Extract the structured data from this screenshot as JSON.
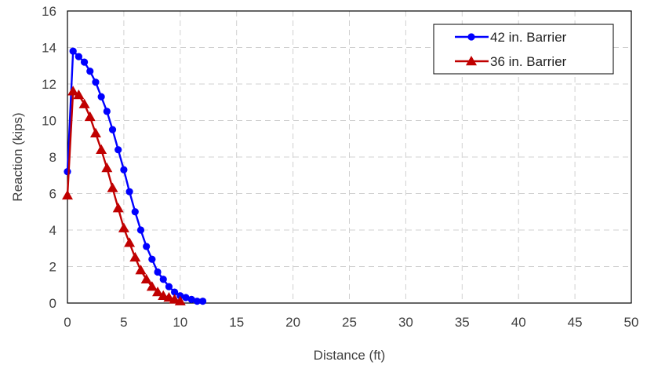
{
  "chart_data": {
    "type": "line",
    "xlabel": "Distance (ft)",
    "ylabel": "Reaction (kips)",
    "xlim": [
      0,
      50
    ],
    "ylim": [
      0,
      16
    ],
    "x_ticks": [
      0,
      5,
      10,
      15,
      20,
      25,
      30,
      35,
      40,
      45,
      50
    ],
    "y_ticks": [
      0,
      2,
      4,
      6,
      8,
      10,
      12,
      14,
      16
    ],
    "grid": true,
    "legend_position": "top-right",
    "series": [
      {
        "name": "42 in. Barrier",
        "color": "#0000ff",
        "marker": "circle",
        "points": [
          [
            0,
            7.2
          ],
          [
            0.5,
            13.8
          ],
          [
            1.0,
            13.5
          ],
          [
            1.5,
            13.2
          ],
          [
            2.0,
            12.7
          ],
          [
            2.5,
            12.1
          ],
          [
            3.0,
            11.3
          ],
          [
            3.5,
            10.5
          ],
          [
            4.0,
            9.5
          ],
          [
            4.5,
            8.4
          ],
          [
            5.0,
            7.3
          ],
          [
            5.5,
            6.1
          ],
          [
            6.0,
            5.0
          ],
          [
            6.5,
            4.0
          ],
          [
            7.0,
            3.1
          ],
          [
            7.5,
            2.4
          ],
          [
            8.0,
            1.7
          ],
          [
            8.5,
            1.3
          ],
          [
            9.0,
            0.9
          ],
          [
            9.5,
            0.6
          ],
          [
            10.0,
            0.4
          ],
          [
            10.5,
            0.3
          ],
          [
            11.0,
            0.2
          ],
          [
            11.5,
            0.1
          ],
          [
            12.0,
            0.1
          ]
        ]
      },
      {
        "name": "36 in. Barrier",
        "color": "#c00000",
        "marker": "triangle",
        "points": [
          [
            0,
            5.9
          ],
          [
            0.5,
            11.6
          ],
          [
            1.0,
            11.4
          ],
          [
            1.5,
            10.9
          ],
          [
            2.0,
            10.2
          ],
          [
            2.5,
            9.3
          ],
          [
            3.0,
            8.4
          ],
          [
            3.5,
            7.4
          ],
          [
            4.0,
            6.3
          ],
          [
            4.5,
            5.2
          ],
          [
            5.0,
            4.1
          ],
          [
            5.5,
            3.3
          ],
          [
            6.0,
            2.5
          ],
          [
            6.5,
            1.8
          ],
          [
            7.0,
            1.3
          ],
          [
            7.5,
            0.9
          ],
          [
            8.0,
            0.6
          ],
          [
            8.5,
            0.4
          ],
          [
            9.0,
            0.3
          ],
          [
            9.5,
            0.2
          ],
          [
            10.0,
            0.1
          ]
        ]
      }
    ]
  }
}
